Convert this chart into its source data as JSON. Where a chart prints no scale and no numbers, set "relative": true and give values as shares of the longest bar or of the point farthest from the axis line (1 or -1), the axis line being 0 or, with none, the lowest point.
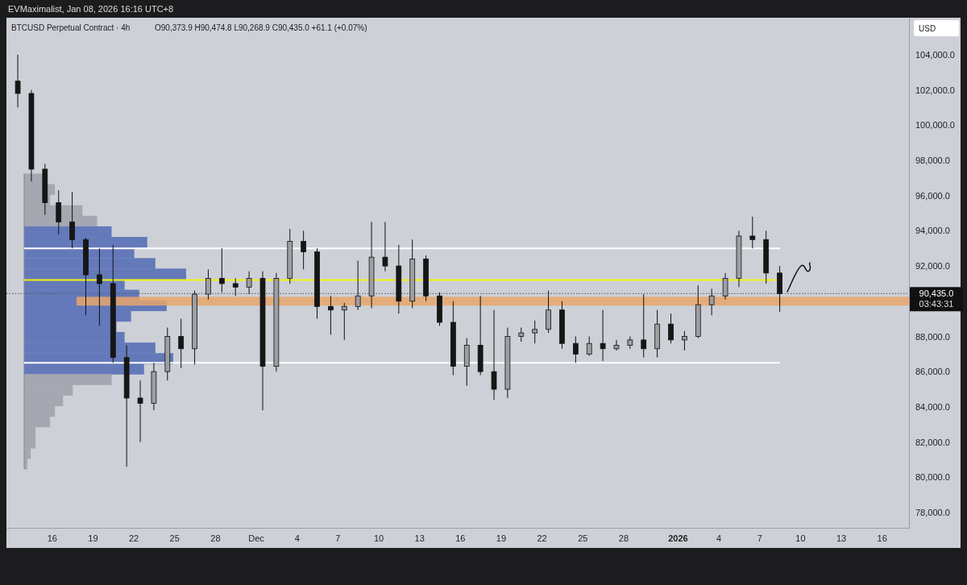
{
  "chart_data": [
    {
      "type": "candlestick",
      "title": "BTCUSD Perpetual Contract · 4h",
      "subtitle": "O90,373.9 H90,474.8 L90,268.9 C90,435.0 +61.1 (+0.07%)",
      "ylabel": "USD",
      "annotations": [
        "EVMaximalist, Jan 08, 2026 16:16 UTC+8",
        "03:43:31"
      ],
      "x": [
        "2025-11-13T12:00",
        "2025-11-14T12:00",
        "2025-11-15T12:00",
        "2025-11-16T12:00",
        "2025-11-17T12:00",
        "2025-11-18T12:00",
        "2025-11-19T12:00",
        "2025-11-20T12:00",
        "2025-11-21T12:00",
        "2025-11-22T12:00",
        "2025-11-23T12:00",
        "2025-11-24T12:00",
        "2025-11-25T12:00",
        "2025-11-26T12:00",
        "2025-11-27T12:00",
        "2025-11-28T12:00",
        "2025-11-29T12:00",
        "2025-11-30T12:00",
        "2025-12-01T12:00",
        "2025-12-02T12:00",
        "2025-12-03T12:00",
        "2025-12-04T12:00",
        "2025-12-05T12:00",
        "2025-12-06T12:00",
        "2025-12-07T12:00",
        "2025-12-08T12:00",
        "2025-12-09T12:00",
        "2025-12-10T12:00",
        "2025-12-11T12:00",
        "2025-12-12T12:00",
        "2025-12-13T12:00",
        "2025-12-14T12:00",
        "2025-12-15T12:00",
        "2025-12-16T12:00",
        "2025-12-17T12:00",
        "2025-12-18T12:00",
        "2025-12-19T12:00",
        "2025-12-20T12:00",
        "2025-12-21T12:00",
        "2025-12-22T12:00",
        "2025-12-23T12:00",
        "2025-12-24T12:00",
        "2025-12-25T12:00",
        "2025-12-26T12:00",
        "2025-12-27T12:00",
        "2025-12-28T12:00",
        "2025-12-29T12:00",
        "2025-12-30T12:00",
        "2025-12-31T12:00",
        "2026-01-01T12:00",
        "2026-01-02T12:00",
        "2026-01-03T12:00",
        "2026-01-04T12:00",
        "2026-01-05T12:00",
        "2026-01-06T12:00",
        "2026-01-07T12:00",
        "2026-01-08T12:00"
      ],
      "ohlc": [
        [
          102500,
          104000,
          101000,
          101800
        ],
        [
          101800,
          102000,
          96800,
          97500
        ],
        [
          97500,
          97800,
          94900,
          95600
        ],
        [
          95600,
          96300,
          93800,
          94500
        ],
        [
          94500,
          96200,
          93000,
          93500
        ],
        [
          93500,
          93600,
          89200,
          91500
        ],
        [
          91500,
          93000,
          88600,
          91000
        ],
        [
          91000,
          93200,
          86500,
          86800
        ],
        [
          86800,
          87500,
          80600,
          84500
        ],
        [
          84500,
          85500,
          82000,
          84200
        ],
        [
          84200,
          86500,
          83800,
          86000
        ],
        [
          86000,
          88500,
          85500,
          88000
        ],
        [
          88000,
          89000,
          86200,
          87300
        ],
        [
          87300,
          90600,
          86400,
          90400
        ],
        [
          90400,
          91800,
          90100,
          91300
        ],
        [
          91300,
          93000,
          90500,
          91000
        ],
        [
          91000,
          91300,
          90300,
          90800
        ],
        [
          90800,
          91700,
          90400,
          91300
        ],
        [
          91300,
          91700,
          83800,
          86300
        ],
        [
          86300,
          91600,
          86000,
          91300
        ],
        [
          91300,
          94100,
          91000,
          93400
        ],
        [
          93400,
          94000,
          91800,
          92800
        ],
        [
          92800,
          93000,
          89000,
          89700
        ],
        [
          89700,
          90300,
          88100,
          89500
        ],
        [
          89500,
          89900,
          87800,
          89700
        ],
        [
          89700,
          92300,
          89500,
          90300
        ],
        [
          90300,
          94500,
          89600,
          92500
        ],
        [
          92500,
          94500,
          91700,
          92000
        ],
        [
          92000,
          93200,
          89300,
          90000
        ],
        [
          90000,
          93500,
          89600,
          92400
        ],
        [
          92400,
          92600,
          90000,
          90300
        ],
        [
          90300,
          90500,
          88600,
          88800
        ],
        [
          88800,
          90000,
          85800,
          86300
        ],
        [
          86300,
          87900,
          85200,
          87500
        ],
        [
          87500,
          90300,
          85800,
          86000
        ],
        [
          86000,
          89500,
          84400,
          85000
        ],
        [
          85000,
          88500,
          84500,
          88000
        ],
        [
          88000,
          88500,
          87700,
          88200
        ],
        [
          88200,
          88900,
          87600,
          88400
        ],
        [
          88400,
          90600,
          88200,
          89500
        ],
        [
          89500,
          90000,
          87300,
          87600
        ],
        [
          87600,
          88000,
          86500,
          87000
        ],
        [
          87000,
          88000,
          86900,
          87600
        ],
        [
          87600,
          89500,
          86600,
          87300
        ],
        [
          87300,
          87800,
          87200,
          87500
        ],
        [
          87500,
          88000,
          87300,
          87800
        ],
        [
          87800,
          90400,
          86800,
          87300
        ],
        [
          87300,
          89500,
          86800,
          88700
        ],
        [
          88700,
          89300,
          87600,
          87800
        ],
        [
          87800,
          88300,
          87200,
          88000
        ],
        [
          88000,
          90900,
          87900,
          89800
        ],
        [
          89800,
          90700,
          89200,
          90300
        ],
        [
          90300,
          91600,
          90100,
          91300
        ],
        [
          91300,
          94000,
          90800,
          93700
        ],
        [
          93700,
          94800,
          93000,
          93500
        ],
        [
          93500,
          94000,
          91000,
          91600
        ],
        [
          91600,
          92000,
          89400,
          90435
        ]
      ],
      "xlim": [
        "2025-11-12T16:00",
        "2026-01-18T00:00"
      ],
      "xticks": [
        {
          "value": "2025-11-16",
          "label": "16"
        },
        {
          "value": "2025-11-19",
          "label": "19"
        },
        {
          "value": "2025-11-22",
          "label": "22"
        },
        {
          "value": "2025-11-25",
          "label": "25"
        },
        {
          "value": "2025-11-28",
          "label": "28"
        },
        {
          "value": "2025-12-01",
          "label": "Dec"
        },
        {
          "value": "2025-12-04",
          "label": "4"
        },
        {
          "value": "2025-12-07",
          "label": "7"
        },
        {
          "value": "2025-12-10",
          "label": "10"
        },
        {
          "value": "2025-12-13",
          "label": "13"
        },
        {
          "value": "2025-12-16",
          "label": "16"
        },
        {
          "value": "2025-12-19",
          "label": "19"
        },
        {
          "value": "2025-12-22",
          "label": "22"
        },
        {
          "value": "2025-12-25",
          "label": "25"
        },
        {
          "value": "2025-12-28",
          "label": "28"
        },
        {
          "value": "2026-01-01",
          "label": "2026"
        },
        {
          "value": "2026-01-04",
          "label": "4"
        },
        {
          "value": "2026-01-07",
          "label": "7"
        },
        {
          "value": "2026-01-10",
          "label": "10"
        },
        {
          "value": "2026-01-13",
          "label": "13"
        },
        {
          "value": "2026-01-16",
          "label": "16"
        }
      ],
      "ylim": [
        77130,
        106100
      ],
      "yticks": [
        {
          "value": 78000,
          "label": "78,000.0"
        },
        {
          "value": 80000,
          "label": "80,000.0"
        },
        {
          "value": 82000,
          "label": "82,000.0"
        },
        {
          "value": 84000,
          "label": "84,000.0"
        },
        {
          "value": 86000,
          "label": "86,000.0"
        },
        {
          "value": 88000,
          "label": "88,000.0"
        },
        {
          "value": 92000,
          "label": "92,000.0"
        },
        {
          "value": 94000,
          "label": "94,000.0"
        },
        {
          "value": 96000,
          "label": "96,000.0"
        },
        {
          "value": 98000,
          "label": "98,000.0"
        },
        {
          "value": 100000,
          "label": "100,000.0"
        },
        {
          "value": 102000,
          "label": "102,000.0"
        },
        {
          "value": 104000,
          "label": "104,000.0"
        }
      ],
      "ref_lines": [
        {
          "axis": "y",
          "value": 93000,
          "color": "#ffffff"
        },
        {
          "axis": "y",
          "value": 91200,
          "color": "#f2f20c"
        },
        {
          "axis": "y",
          "value": 86500,
          "color": "#ffffff"
        },
        {
          "axis": "y",
          "value": 90435,
          "label": "90,435.0",
          "color": "#555555",
          "line_style": "dotted"
        }
      ],
      "bands": [
        {
          "axis": "y",
          "from": 89750,
          "to": 90250,
          "color": "#e8a66a"
        }
      ]
    },
    {
      "type": "bar",
      "orientation": "horizontal",
      "relative": true,
      "categories": [
        null,
        null,
        null,
        null,
        null,
        null,
        null,
        null,
        null,
        null,
        null,
        null,
        null,
        null,
        null,
        null,
        null,
        null,
        null,
        null,
        null,
        null,
        null,
        null,
        null,
        null,
        null,
        null
      ],
      "values": [
        0.13,
        0.19,
        0.16,
        0.36,
        0.45,
        0.54,
        0.76,
        0.68,
        0.81,
        1,
        0.62,
        0.71,
        0.88,
        0.66,
        0.57,
        0.62,
        0.81,
        0.92,
        0.74,
        0.54,
        0.3,
        0.24,
        0.19,
        0.16,
        0.07,
        0.07,
        0.04,
        0.02
      ],
      "colors": [
        "#9c9fa8",
        "#9c9fa8",
        "#9c9fa8",
        "#9c9fa8",
        "#9c9fa8",
        "#4a64b4",
        "#4a64b4",
        "#4a64b4",
        "#4a64b4",
        "#4a64b4",
        "#4a64b4",
        "#4a64b4",
        "#4a64b4",
        "#4a64b4",
        "#4a64b4",
        "#4a64b4",
        "#4a64b4",
        "#4a64b4",
        "#4a64b4",
        "#9c9fa8",
        "#9c9fa8",
        "#9c9fa8",
        "#9c9fa8",
        "#9c9fa8",
        "#9c9fa8",
        "#9c9fa8",
        "#9c9fa8",
        "#9c9fa8"
      ]
    }
  ]
}
